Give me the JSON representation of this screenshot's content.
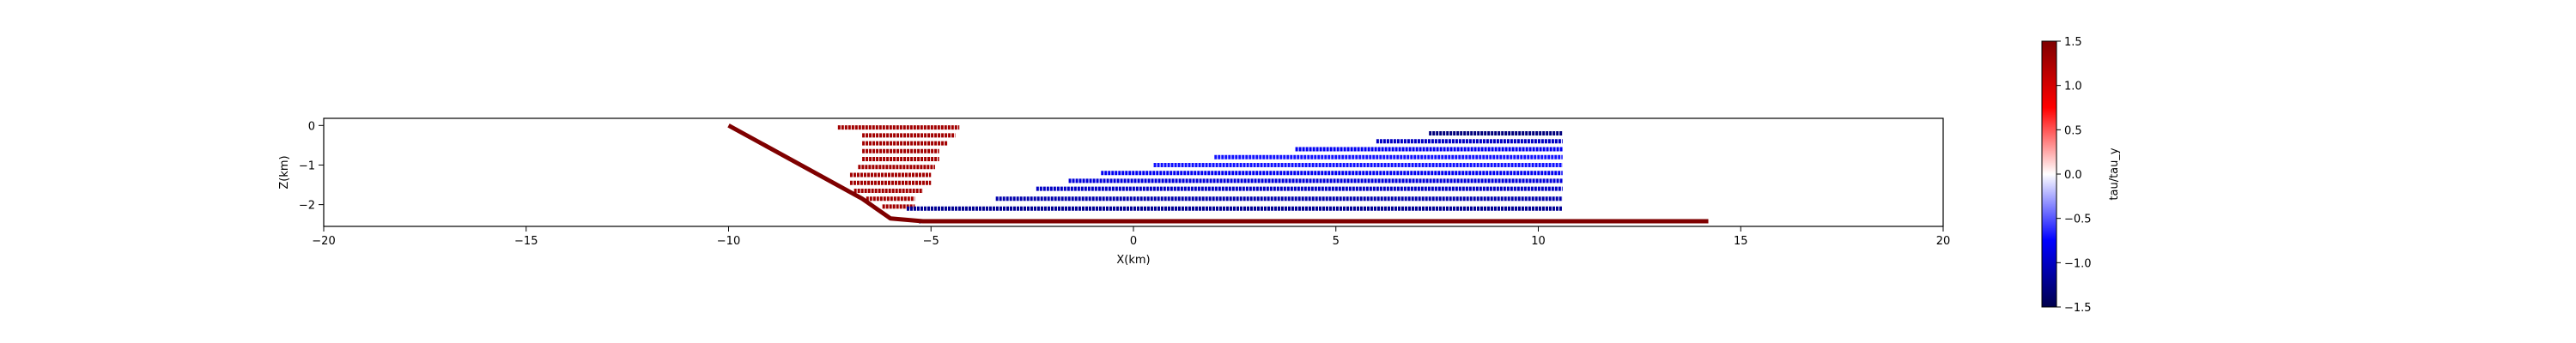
{
  "chart_data": {
    "type": "scatter",
    "title": "",
    "xlabel": "X(km)",
    "ylabel": "Z(km)",
    "xlim": [
      -20,
      20
    ],
    "ylim": [
      -2.55,
      0.18
    ],
    "xticks": [
      -20,
      -15,
      -10,
      -5,
      0,
      5,
      10,
      15,
      20
    ],
    "xtick_labels": [
      "−20",
      "−15",
      "−10",
      "−5",
      "0",
      "5",
      "10",
      "15",
      "20"
    ],
    "yticks": [
      0,
      -1,
      -2
    ],
    "ytick_labels": [
      "0",
      "−1",
      "−2"
    ],
    "grid": false,
    "colormap": "seismic",
    "colorbar": {
      "label": "tau/tau_y",
      "range": [
        -1.5,
        1.5
      ],
      "ticks": [
        1.5,
        1.0,
        0.5,
        0.0,
        -0.5,
        -1.0,
        -1.5
      ],
      "tick_labels": [
        "1.5",
        "1.0",
        "0.5",
        "0.0",
        "−0.5",
        "−1.0",
        "−1.5"
      ]
    },
    "fault": {
      "name": "fault trace",
      "points": [
        [
          -10.0,
          0.0
        ],
        [
          -6.7,
          -1.85
        ],
        [
          -6.0,
          -2.35
        ],
        [
          -5.2,
          -2.42
        ],
        [
          14.2,
          -2.42
        ]
      ]
    },
    "series": [
      {
        "name": "red band 1",
        "x": [
          -7.3,
          -4.3
        ],
        "z": [
          -0.05,
          -0.05
        ],
        "value": 1.3
      },
      {
        "name": "red band 2",
        "x": [
          -6.7,
          -4.4
        ],
        "z": [
          -0.25,
          -0.25
        ],
        "value": 1.3
      },
      {
        "name": "red band 3",
        "x": [
          -6.7,
          -4.6
        ],
        "z": [
          -0.45,
          -0.45
        ],
        "value": 1.3
      },
      {
        "name": "red band 4",
        "x": [
          -6.7,
          -4.8
        ],
        "z": [
          -0.65,
          -0.65
        ],
        "value": 1.3
      },
      {
        "name": "red band 5",
        "x": [
          -6.7,
          -4.8
        ],
        "z": [
          -0.85,
          -0.85
        ],
        "value": 1.3
      },
      {
        "name": "red band 6",
        "x": [
          -6.8,
          -4.9
        ],
        "z": [
          -1.05,
          -1.05
        ],
        "value": 1.3
      },
      {
        "name": "red band 7",
        "x": [
          -7.0,
          -5.0
        ],
        "z": [
          -1.25,
          -1.25
        ],
        "value": 1.3
      },
      {
        "name": "red band 8",
        "x": [
          -7.0,
          -5.0
        ],
        "z": [
          -1.45,
          -1.45
        ],
        "value": 1.3
      },
      {
        "name": "red band 9",
        "x": [
          -6.9,
          -5.2
        ],
        "z": [
          -1.65,
          -1.65
        ],
        "value": 1.3
      },
      {
        "name": "red band 10",
        "x": [
          -6.6,
          -5.4
        ],
        "z": [
          -1.85,
          -1.85
        ],
        "value": 1.3
      },
      {
        "name": "red band 11",
        "x": [
          -6.2,
          -5.4
        ],
        "z": [
          -2.05,
          -2.05
        ],
        "value": 1.3
      },
      {
        "name": "blue band 1",
        "x": [
          7.3,
          10.6
        ],
        "z": [
          -0.2,
          -0.2
        ],
        "value": -1.3
      },
      {
        "name": "blue band 2",
        "x": [
          6.0,
          10.6
        ],
        "z": [
          -0.4,
          -0.4
        ],
        "value": -1.0
      },
      {
        "name": "blue band 3",
        "x": [
          4.0,
          10.6
        ],
        "z": [
          -0.6,
          -0.6
        ],
        "value": -0.8
      },
      {
        "name": "blue band 4",
        "x": [
          2.0,
          10.6
        ],
        "z": [
          -0.8,
          -0.8
        ],
        "value": -0.7
      },
      {
        "name": "blue band 5",
        "x": [
          0.5,
          10.6
        ],
        "z": [
          -1.0,
          -1.0
        ],
        "value": -0.7
      },
      {
        "name": "blue band 6",
        "x": [
          -0.8,
          10.6
        ],
        "z": [
          -1.2,
          -1.2
        ],
        "value": -0.8
      },
      {
        "name": "blue band 7",
        "x": [
          -1.6,
          10.6
        ],
        "z": [
          -1.4,
          -1.4
        ],
        "value": -0.9
      },
      {
        "name": "blue band 8",
        "x": [
          -2.4,
          10.6
        ],
        "z": [
          -1.6,
          -1.6
        ],
        "value": -1.0
      },
      {
        "name": "blue band 9",
        "x": [
          -3.4,
          10.6
        ],
        "z": [
          -1.85,
          -1.85
        ],
        "value": -1.1
      },
      {
        "name": "blue band 10",
        "x": [
          -5.6,
          10.6
        ],
        "z": [
          -2.1,
          -2.1
        ],
        "value": -1.2
      },
      {
        "name": "blue band 11",
        "x": [
          -5.3,
          14.2
        ],
        "z": [
          -2.42,
          -2.42
        ],
        "value": -1.5
      }
    ]
  }
}
